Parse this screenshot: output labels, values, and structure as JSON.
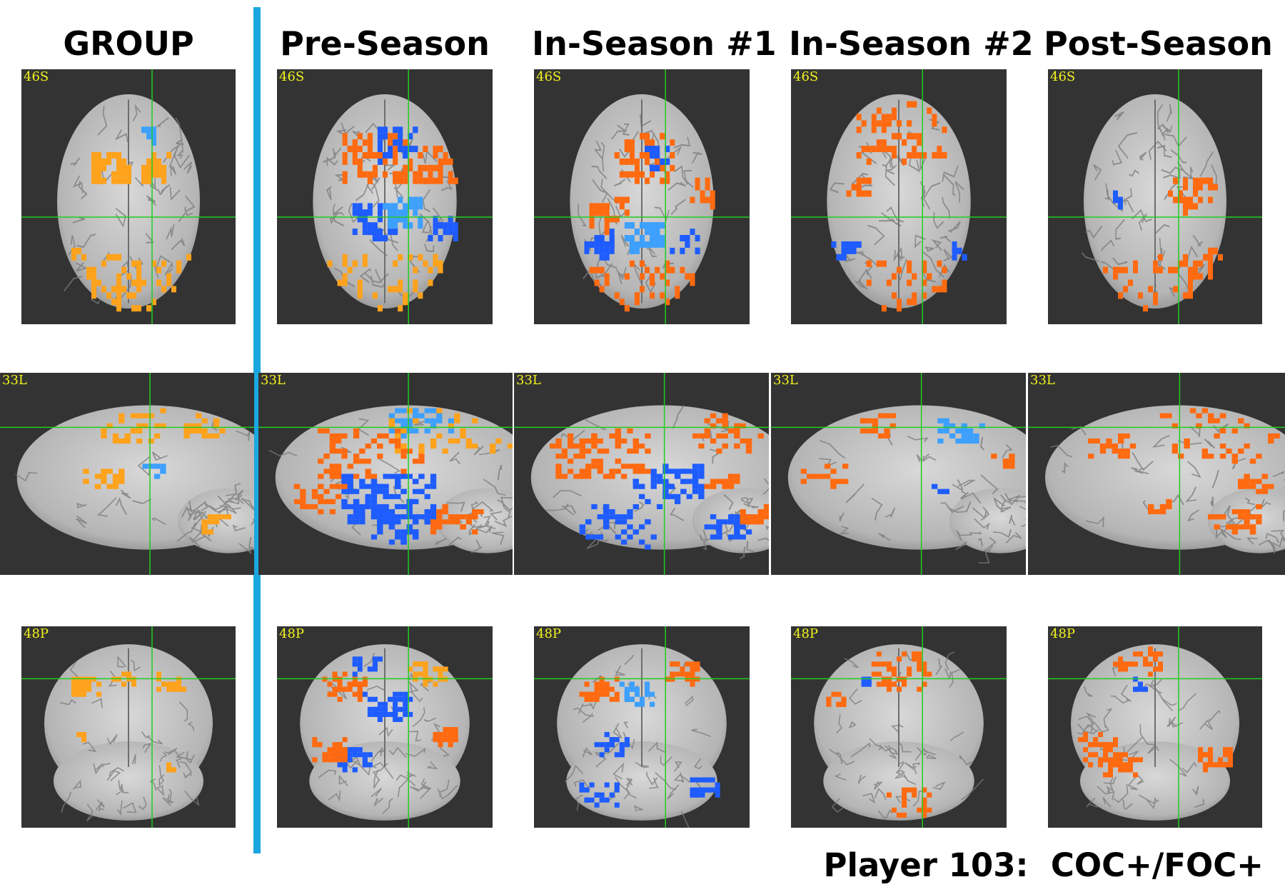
{
  "columns": [
    "GROUP",
    "Pre-Season",
    "In-Season #1",
    "In-Season #2",
    "Post-Season"
  ],
  "slice_labels": {
    "axial": "46S",
    "sagittal": "33L",
    "coronal": "48P"
  },
  "caption": "Player 103:  COC+/FOC+",
  "colors": {
    "background": "#333333",
    "crosshair": "#22cc22",
    "slice_label": "#f2f21e",
    "divider": "#1aa7e0",
    "activation_positive": "#ff6a10",
    "activation_positive_light": "#ffa21c",
    "activation_negative": "#1e5cff",
    "activation_negative_light": "#3da0ff"
  }
}
